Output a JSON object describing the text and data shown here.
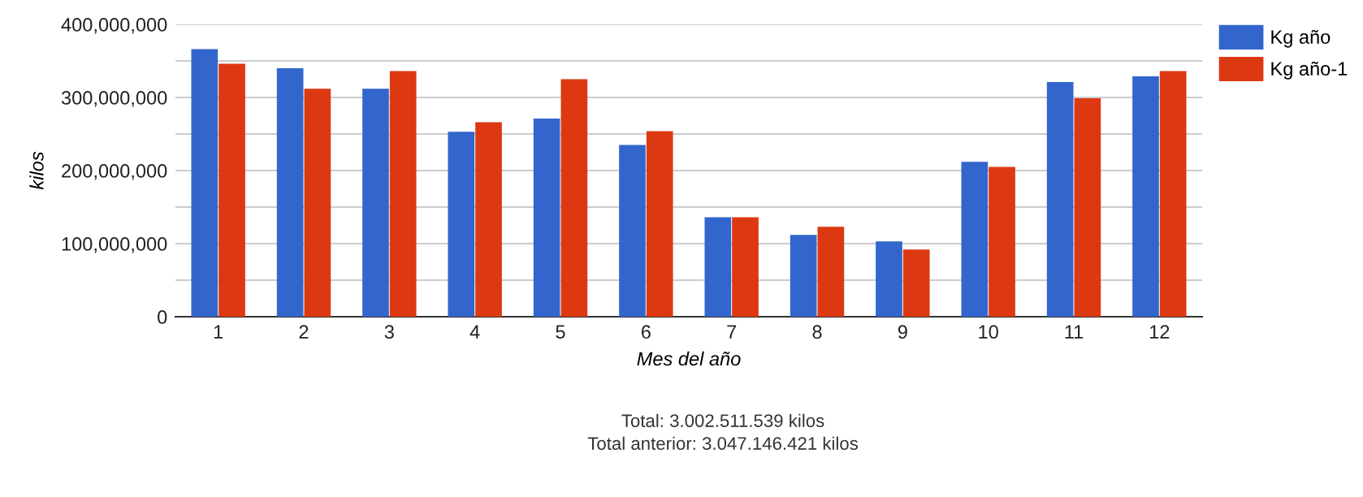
{
  "chart_data": {
    "type": "bar",
    "xlabel": "Mes del año",
    "ylabel": "kilos",
    "categories": [
      "1",
      "2",
      "3",
      "4",
      "5",
      "6",
      "7",
      "8",
      "9",
      "10",
      "11",
      "12"
    ],
    "series": [
      {
        "name": "Kg año",
        "color": "#3366cc",
        "values": [
          366000000,
          340000000,
          312000000,
          253000000,
          271000000,
          235000000,
          136000000,
          112000000,
          103000000,
          212000000,
          321000000,
          329000000
        ]
      },
      {
        "name": "Kg año-1",
        "color": "#dc3912",
        "values": [
          346000000,
          312000000,
          336000000,
          266000000,
          325000000,
          254000000,
          136000000,
          123000000,
          92000000,
          205000000,
          299000000,
          336000000
        ]
      }
    ],
    "ylim": [
      0,
      400000000
    ],
    "yticks": [
      {
        "value": 0,
        "label": "0"
      },
      {
        "value": 50000000,
        "label": null
      },
      {
        "value": 100000000,
        "label": "100,000,000"
      },
      {
        "value": 150000000,
        "label": null
      },
      {
        "value": 200000000,
        "label": "200,000,000"
      },
      {
        "value": 250000000,
        "label": null
      },
      {
        "value": 300000000,
        "label": "300,000,000"
      },
      {
        "value": 350000000,
        "label": null
      },
      {
        "value": 400000000,
        "label": "400,000,000"
      }
    ],
    "grid": "y",
    "legend": "top right",
    "annotations": [
      "Total: 3.002.511.539 kilos",
      "Total anterior: 3.047.146.421 kilos"
    ]
  }
}
